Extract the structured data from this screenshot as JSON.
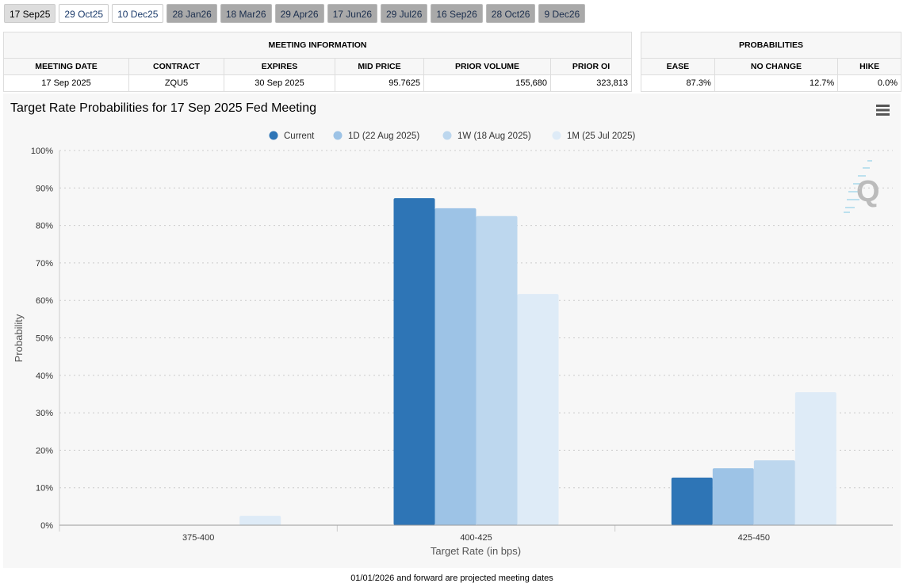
{
  "tabs": [
    {
      "label": "17 Sep25",
      "state": "selected"
    },
    {
      "label": "29 Oct25",
      "state": "normal"
    },
    {
      "label": "10 Dec25",
      "state": "normal"
    },
    {
      "label": "28 Jan26",
      "state": "projected"
    },
    {
      "label": "18 Mar26",
      "state": "projected"
    },
    {
      "label": "29 Apr26",
      "state": "projected"
    },
    {
      "label": "17 Jun26",
      "state": "projected"
    },
    {
      "label": "29 Jul26",
      "state": "projected"
    },
    {
      "label": "16 Sep26",
      "state": "projected"
    },
    {
      "label": "28 Oct26",
      "state": "projected"
    },
    {
      "label": "9 Dec26",
      "state": "projected"
    }
  ],
  "meeting_info": {
    "title": "MEETING INFORMATION",
    "headers": [
      "MEETING DATE",
      "CONTRACT",
      "EXPIRES",
      "MID PRICE",
      "PRIOR VOLUME",
      "PRIOR OI"
    ],
    "values": [
      "17 Sep 2025",
      "ZQU5",
      "30 Sep 2025",
      "95.7625",
      "155,680",
      "323,813"
    ]
  },
  "probabilities": {
    "title": "PROBABILITIES",
    "headers": [
      "EASE",
      "NO CHANGE",
      "HIKE"
    ],
    "values": [
      "87.3%",
      "12.7%",
      "0.0%"
    ]
  },
  "chart_data": {
    "type": "bar",
    "title": "Target Rate Probabilities for 17 Sep 2025 Fed Meeting",
    "xlabel": "Target Rate (in bps)",
    "ylabel": "Probability",
    "ylim": [
      0,
      100
    ],
    "yticks": [
      "0%",
      "10%",
      "20%",
      "30%",
      "40%",
      "50%",
      "60%",
      "70%",
      "80%",
      "90%",
      "100%"
    ],
    "categories": [
      "375-400",
      "400-425",
      "425-450"
    ],
    "legend_position": "top-center",
    "series": [
      {
        "name": "Current",
        "color": "#2e75b6",
        "values": [
          0,
          87.3,
          12.7
        ]
      },
      {
        "name": "1D (22 Aug 2025)",
        "color": "#9dc3e6",
        "values": [
          0,
          84.6,
          15.2
        ]
      },
      {
        "name": "1W (18 Aug 2025)",
        "color": "#bdd7ee",
        "values": [
          0,
          82.5,
          17.3
        ]
      },
      {
        "name": "1M (25 Jul 2025)",
        "color": "#deebf7",
        "values": [
          2.5,
          61.7,
          35.5
        ]
      }
    ]
  },
  "footer": "01/01/2026 and forward are projected meeting dates",
  "icons": {
    "menu": "hamburger-menu-icon",
    "logo": "q-logo-watermark"
  }
}
